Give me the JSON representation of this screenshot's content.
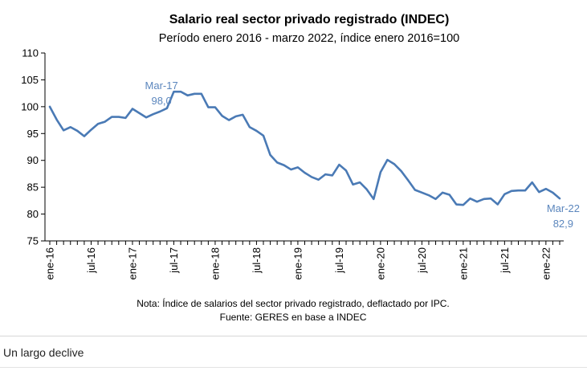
{
  "caption": "Un largo declive",
  "colors": {
    "line": "#4a7ab5",
    "annotation": "#5b86bd",
    "axis": "#000000"
  },
  "chart_data": {
    "type": "line",
    "title": "Salario real sector privado registrado (INDEC)",
    "subtitle": "Período enero 2016 - marzo 2022, índice enero 2016=100",
    "xlabel": "",
    "ylabel": "",
    "ylim": [
      75,
      110
    ],
    "yticks": [
      75,
      80,
      85,
      90,
      95,
      100,
      105,
      110
    ],
    "x_tick_labels": [
      "ene-16",
      "jul-16",
      "ene-17",
      "jul-17",
      "ene-18",
      "jul-18",
      "ene-19",
      "jul-19",
      "ene-20",
      "jul-20",
      "ene-21",
      "jul-21",
      "ene-22"
    ],
    "grid": false,
    "legend": "none",
    "x": [
      "2016-01",
      "2016-02",
      "2016-03",
      "2016-04",
      "2016-05",
      "2016-06",
      "2016-07",
      "2016-08",
      "2016-09",
      "2016-10",
      "2016-11",
      "2016-12",
      "2017-01",
      "2017-02",
      "2017-03",
      "2017-04",
      "2017-05",
      "2017-06",
      "2017-07",
      "2017-08",
      "2017-09",
      "2017-10",
      "2017-11",
      "2017-12",
      "2018-01",
      "2018-02",
      "2018-03",
      "2018-04",
      "2018-05",
      "2018-06",
      "2018-07",
      "2018-08",
      "2018-09",
      "2018-10",
      "2018-11",
      "2018-12",
      "2019-01",
      "2019-02",
      "2019-03",
      "2019-04",
      "2019-05",
      "2019-06",
      "2019-07",
      "2019-08",
      "2019-09",
      "2019-10",
      "2019-11",
      "2019-12",
      "2020-01",
      "2020-02",
      "2020-03",
      "2020-04",
      "2020-05",
      "2020-06",
      "2020-07",
      "2020-08",
      "2020-09",
      "2020-10",
      "2020-11",
      "2020-12",
      "2021-01",
      "2021-02",
      "2021-03",
      "2021-04",
      "2021-05",
      "2021-06",
      "2021-07",
      "2021-08",
      "2021-09",
      "2021-10",
      "2021-11",
      "2021-12",
      "2022-01",
      "2022-02",
      "2022-03"
    ],
    "values": [
      100.0,
      97.6,
      95.6,
      96.2,
      95.5,
      94.5,
      95.7,
      96.8,
      97.2,
      98.1,
      98.1,
      97.9,
      99.6,
      98.8,
      98.0,
      98.6,
      99.1,
      99.7,
      102.8,
      102.8,
      102.1,
      102.4,
      102.4,
      99.9,
      99.9,
      98.3,
      97.5,
      98.2,
      98.5,
      96.2,
      95.5,
      94.6,
      91.0,
      89.6,
      89.1,
      88.3,
      88.7,
      87.7,
      86.9,
      86.4,
      87.4,
      87.2,
      89.2,
      88.1,
      85.5,
      85.9,
      84.6,
      82.8,
      87.8,
      90.1,
      89.3,
      88.0,
      86.3,
      84.5,
      84.0,
      83.5,
      82.8,
      84.0,
      83.6,
      81.8,
      81.7,
      82.9,
      82.3,
      82.8,
      82.9,
      81.8,
      83.7,
      84.3,
      84.4,
      84.4,
      85.9,
      84.1,
      84.7,
      84.0,
      82.9
    ],
    "annotations": [
      {
        "label": "Mar-17",
        "value_text": "98,0",
        "x": "2017-03"
      },
      {
        "label": "Mar-22",
        "value_text": "82,9",
        "x": "2022-03"
      }
    ],
    "note": "Nota: Índice de salarios del sector privado registrado, deflactado por IPC.",
    "source": "Fuente: GERES en base a INDEC"
  }
}
